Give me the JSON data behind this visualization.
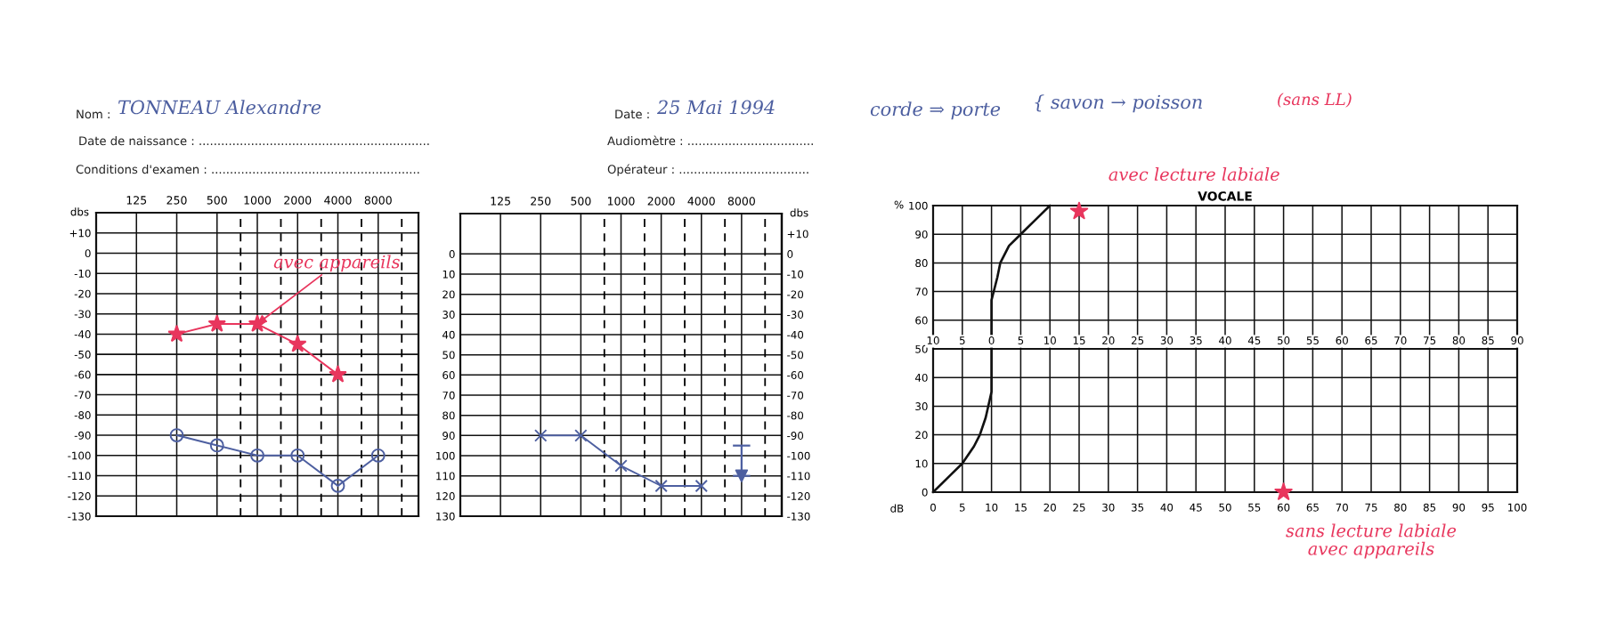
{
  "chart_data": [
    {
      "type": "other",
      "annotations": [
        "Nom :",
        "TONNEAU Alexandre",
        "Date de naissance : ..............................................................",
        "Conditions d'examen : ........................................................",
        "Date :",
        "25 Mai 1994",
        "Audiomètre : ..................................",
        "Opérateur : ...................................",
        "corde ⇒ porte",
        "{ savon → poisson",
        "(sans LL)"
      ]
    },
    {
      "type": "line",
      "log": "x",
      "xlim": [
        62.5,
        16000
      ],
      "xticks": [
        125,
        250,
        500,
        1000,
        2000,
        4000,
        8000
      ],
      "ylim": [
        -130,
        20
      ],
      "yticks": [
        {
          "value": 10,
          "label": "+10"
        },
        0,
        -10,
        -20,
        -30,
        -40,
        -50,
        -60,
        -70,
        -80,
        -90,
        -100,
        -110,
        -120,
        -130
      ],
      "ylabel": "dbs",
      "grid": true,
      "ref_lines": [
        {
          "axis": "x",
          "value": 750,
          "color": "#000000",
          "line_style": "dashed"
        },
        {
          "axis": "x",
          "value": 1500,
          "color": "#000000",
          "line_style": "dashed"
        },
        {
          "axis": "x",
          "value": 3000,
          "color": "#000000",
          "line_style": "dashed"
        },
        {
          "axis": "x",
          "value": 6000,
          "color": "#000000",
          "line_style": "dashed"
        },
        {
          "axis": "x",
          "value": 12000,
          "color": "#000000",
          "line_style": "dashed"
        }
      ],
      "series": [
        {
          "color": "#e8365d",
          "marker": "star",
          "line_style": "solid",
          "x": [
            250,
            500,
            1000,
            2000,
            4000
          ],
          "values": [
            -40,
            -35,
            -35,
            -45,
            -60
          ]
        },
        {
          "color": "#4d5fa0",
          "marker": "circle",
          "line_style": "solid",
          "x": [
            250,
            500,
            1000,
            2000,
            4000,
            8000
          ],
          "values": [
            -90,
            -95,
            -100,
            -100,
            -115,
            -100
          ]
        }
      ],
      "annotations": [
        {
          "text": "avec appareils",
          "x": 1000,
          "y": -35
        }
      ]
    },
    {
      "type": "line",
      "log": "x",
      "xlim": [
        62.5,
        16000
      ],
      "xticks": [
        125,
        250,
        500,
        1000,
        2000,
        4000,
        8000
      ],
      "ylim": [
        -130,
        20
      ],
      "yticks": [
        0,
        {
          "value": -10,
          "label": "10"
        },
        {
          "value": -20,
          "label": "20"
        },
        {
          "value": -30,
          "label": "30"
        },
        {
          "value": -40,
          "label": "40"
        },
        {
          "value": -50,
          "label": "50"
        },
        {
          "value": -60,
          "label": "60"
        },
        {
          "value": -70,
          "label": "70"
        },
        {
          "value": -80,
          "label": "80"
        },
        {
          "value": -90,
          "label": "90"
        },
        {
          "value": -100,
          "label": "100"
        },
        {
          "value": -110,
          "label": "110"
        },
        {
          "value": -120,
          "label": "120"
        },
        {
          "value": -130,
          "label": "130"
        }
      ],
      "y2lim": [
        -130,
        20
      ],
      "y2ticks": [
        {
          "value": 10,
          "label": "+10"
        },
        0,
        -10,
        -20,
        -30,
        -40,
        -50,
        -60,
        -70,
        -80,
        -90,
        -100,
        -110,
        -120,
        -130
      ],
      "y2label": "dbs",
      "grid": true,
      "ref_lines": [
        {
          "axis": "x",
          "value": 750,
          "color": "#000000",
          "line_style": "dashed"
        },
        {
          "axis": "x",
          "value": 1500,
          "color": "#000000",
          "line_style": "dashed"
        },
        {
          "axis": "x",
          "value": 3000,
          "color": "#000000",
          "line_style": "dashed"
        },
        {
          "axis": "x",
          "value": 6000,
          "color": "#000000",
          "line_style": "dashed"
        },
        {
          "axis": "x",
          "value": 12000,
          "color": "#000000",
          "line_style": "dashed"
        }
      ],
      "series": [
        {
          "color": "#4d5fa0",
          "marker": "cross",
          "line_style": "solid",
          "x": [
            250,
            500,
            1000,
            2000,
            4000
          ],
          "values": [
            -90,
            -90,
            -105,
            -115,
            -115
          ]
        },
        {
          "type": "scatter",
          "color": "#4d5fa0",
          "marker": "triangle",
          "x": [
            8000
          ],
          "values": [
            -110
          ],
          "errors": [
            [
              -110,
              -95
            ]
          ]
        }
      ]
    },
    {
      "type": "line",
      "title": "VOCALE",
      "xlabel": "dB",
      "ylabel": "%",
      "xlim": [
        0,
        100
      ],
      "xticks": [
        0,
        5,
        10,
        15,
        20,
        25,
        30,
        35,
        40,
        45,
        50,
        55,
        60,
        65,
        70,
        75,
        80,
        85,
        90,
        95,
        100
      ],
      "ylim": [
        0,
        100
      ],
      "yticks": [
        0,
        10,
        20,
        30,
        40,
        50,
        60,
        70,
        80,
        90,
        100
      ],
      "x2lim": [
        -10,
        90
      ],
      "x2ticks": [
        {
          "value": -10,
          "label": "10"
        },
        {
          "value": -5,
          "label": "5"
        },
        0,
        5,
        10,
        15,
        20,
        25,
        30,
        35,
        40,
        45,
        50,
        55,
        60,
        65,
        70,
        75,
        80,
        85,
        90
      ],
      "grid": true,
      "series": [
        {
          "color": "#111111",
          "marker": "none",
          "line_style": "solid",
          "x": [
            0,
            3,
            5,
            7,
            8,
            9,
            10,
            10,
            11,
            11.5,
            13,
            15,
            17.5,
            20
          ],
          "values": [
            0,
            6,
            10,
            16,
            20,
            26,
            35,
            67,
            75,
            80,
            86,
            90,
            95,
            100
          ]
        },
        {
          "type": "scatter",
          "color": "#e8365d",
          "marker": "star",
          "x": [
            25
          ],
          "values": [
            98
          ]
        },
        {
          "type": "scatter",
          "color": "#e8365d",
          "marker": "star",
          "x": [
            60
          ],
          "values": [
            0
          ]
        }
      ],
      "annotations": [
        {
          "text": "avec lecture labiale",
          "x": 25,
          "y": 98
        },
        {
          "text": "sans lecture labiale\navec appareils",
          "x": 60,
          "y": 0
        }
      ]
    }
  ]
}
